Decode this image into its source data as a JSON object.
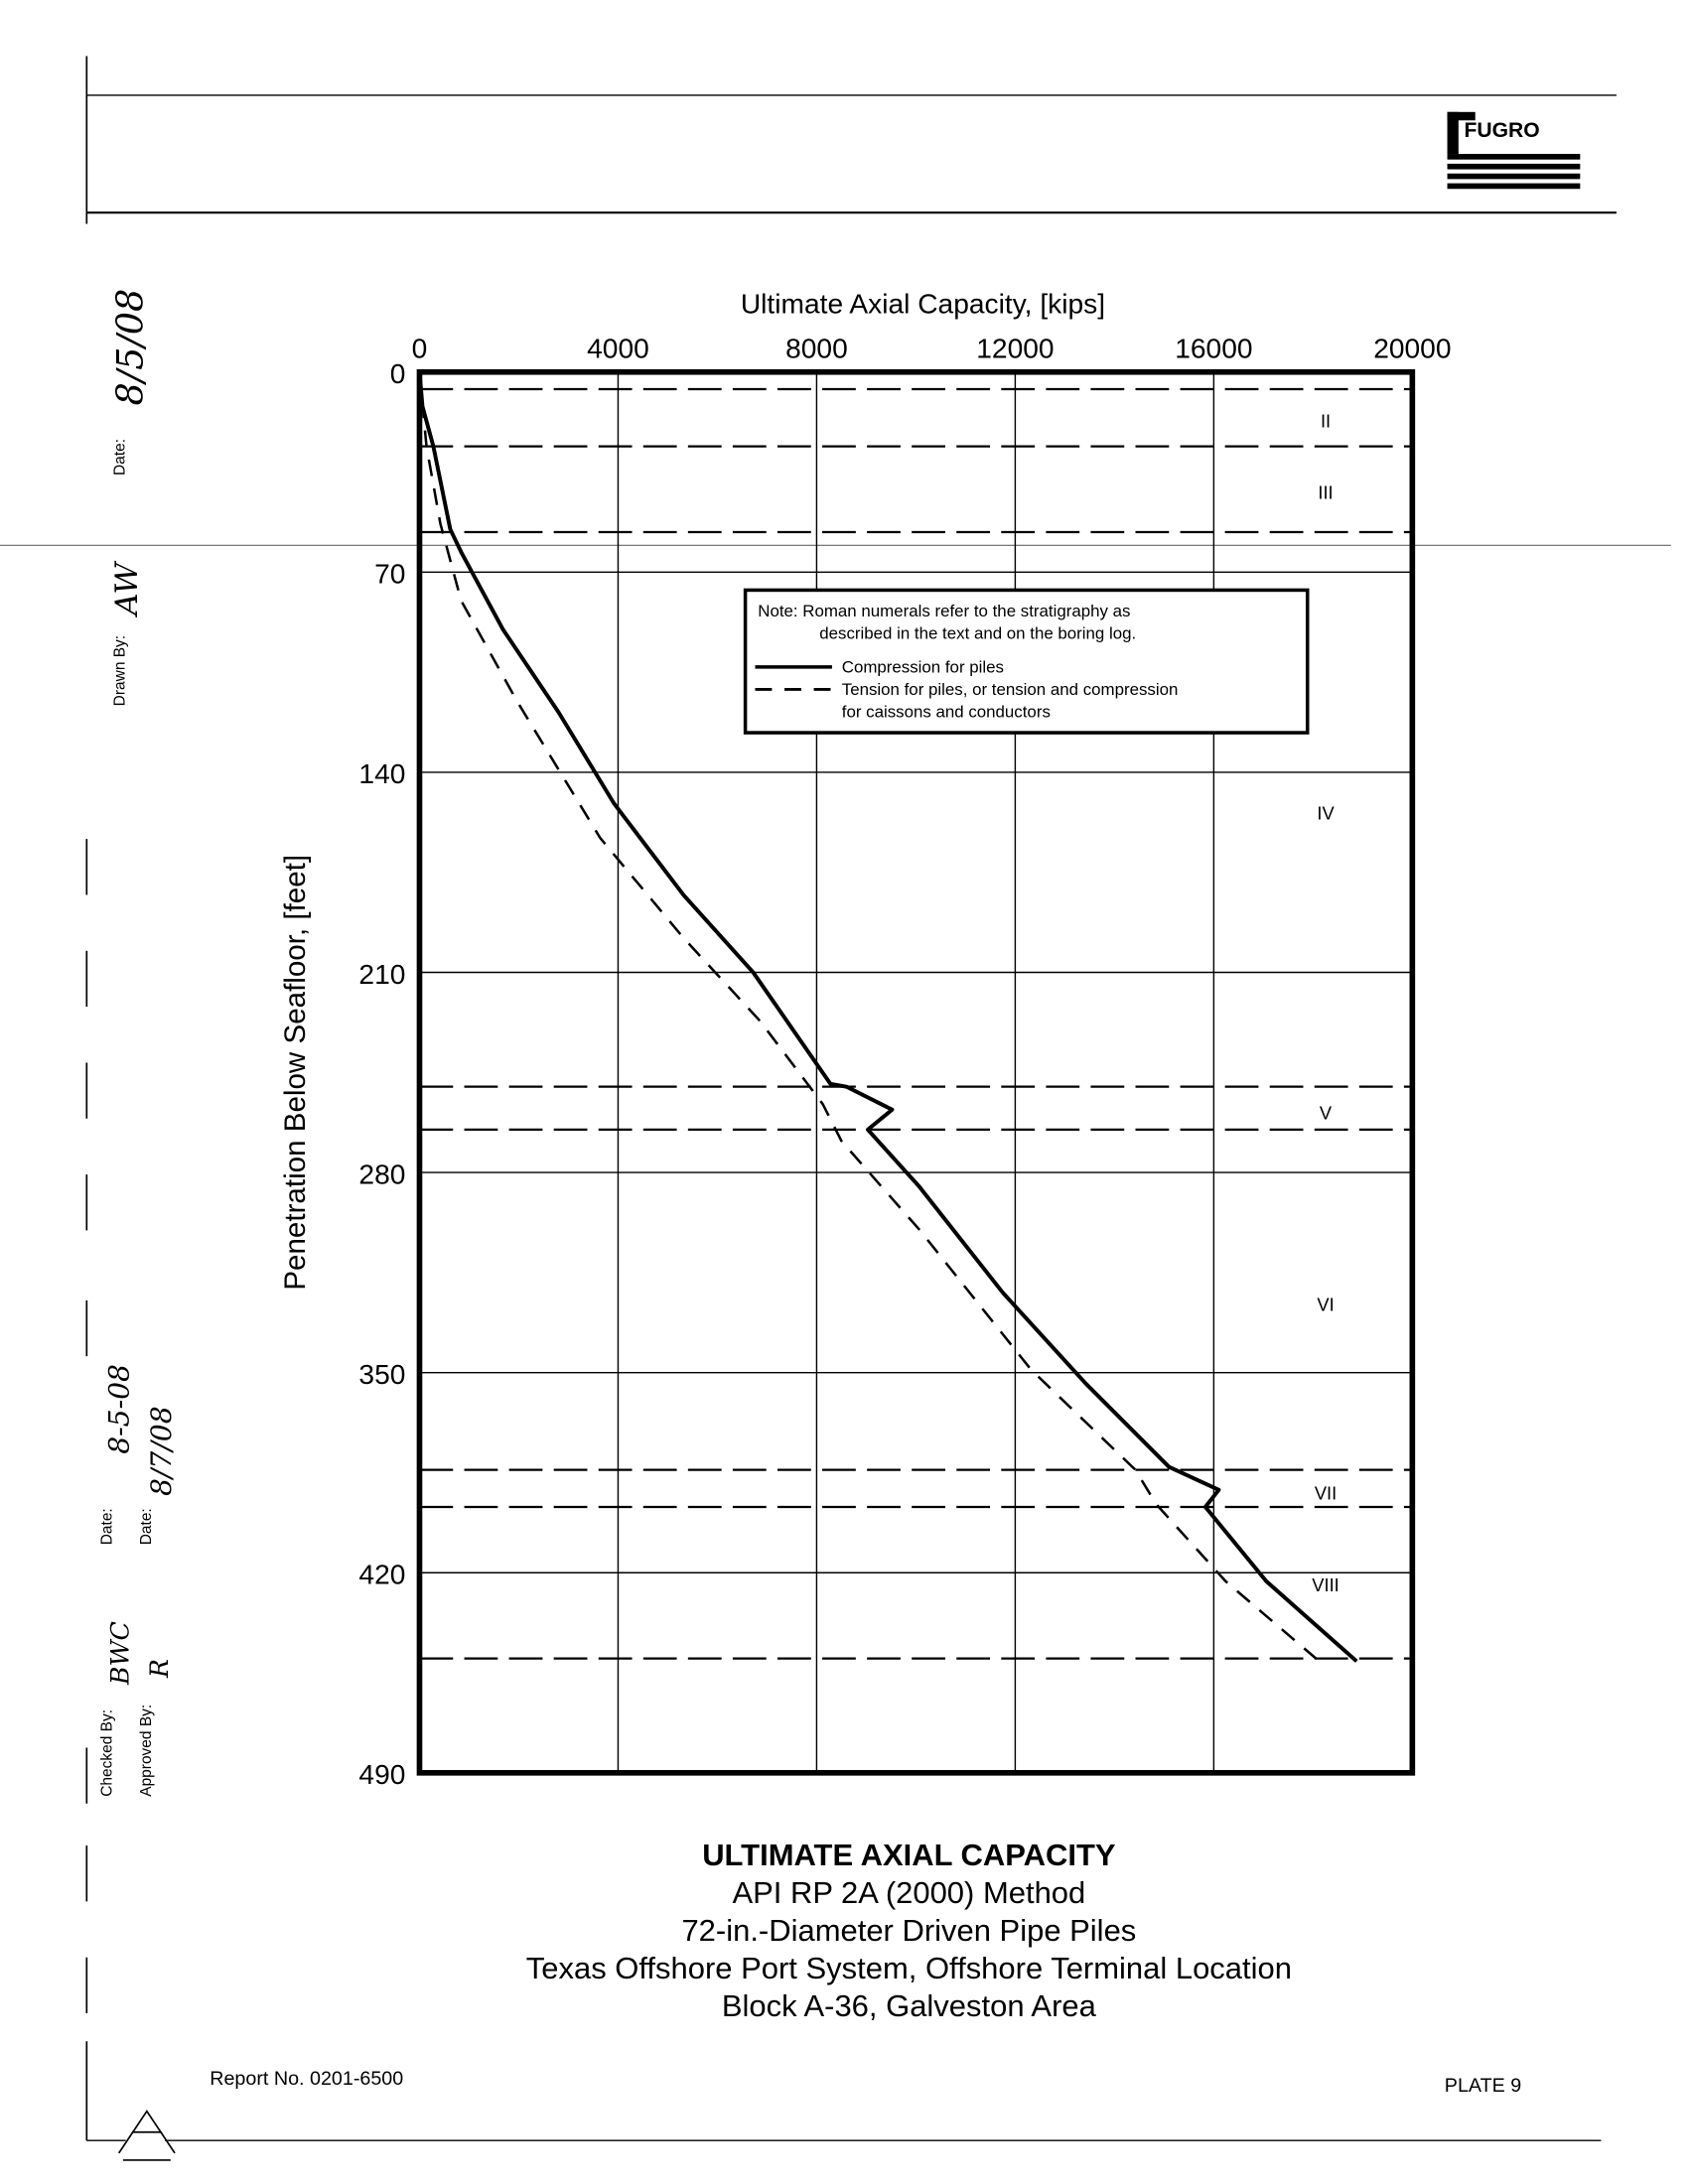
{
  "logo": {
    "text": "FUGRO"
  },
  "margin": {
    "drawn_by_label": "Drawn By:",
    "drawn_by_sig": "AW",
    "date_label_1": "Date:",
    "date_1": "8/5/08",
    "checked_by_label": "Checked By:",
    "checked_by_sig": "BWC",
    "date_label_2": "Date:",
    "date_2": "8-5-08",
    "approved_by_label": "Approved By:",
    "approved_by_sig": "R",
    "date_label_3": "Date:",
    "date_3": "8/7/08"
  },
  "chart_data": {
    "type": "line",
    "xlabel": "Ultimate Axial Capacity, [kips]",
    "ylabel": "Penetration Below Seafloor, [feet]",
    "xlim": [
      0,
      20000
    ],
    "ylim": [
      0,
      490
    ],
    "y_inverted": true,
    "x_axis_position": "top",
    "xticks": [
      "0",
      "4000",
      "8000",
      "12000",
      "16000",
      "20000"
    ],
    "yticks": [
      "0",
      "70",
      "140",
      "210",
      "280",
      "350",
      "420",
      "490"
    ],
    "grid": true,
    "series": [
      {
        "name": "Compression for piles",
        "style": "solid",
        "points": [
          [
            0,
            0
          ],
          [
            60,
            12
          ],
          [
            280,
            26
          ],
          [
            620,
            55
          ],
          [
            840,
            63
          ],
          [
            1680,
            90
          ],
          [
            2800,
            119
          ],
          [
            3920,
            151
          ],
          [
            5320,
            183
          ],
          [
            6720,
            210
          ],
          [
            8280,
            249
          ],
          [
            8600,
            250
          ],
          [
            9520,
            258
          ],
          [
            9030,
            265
          ],
          [
            10070,
            285
          ],
          [
            11750,
            322
          ],
          [
            13430,
            354
          ],
          [
            15100,
            383
          ],
          [
            16100,
            391
          ],
          [
            15830,
            397
          ],
          [
            17060,
            423
          ],
          [
            18880,
            451
          ]
        ]
      },
      {
        "name": "Tension for piles, or tension and compression for caissons and conductors",
        "style": "dashed",
        "points": [
          [
            0,
            0
          ],
          [
            140,
            26
          ],
          [
            420,
            53
          ],
          [
            840,
            80
          ],
          [
            1960,
            115
          ],
          [
            3640,
            163
          ],
          [
            5320,
            198
          ],
          [
            6860,
            227
          ],
          [
            8120,
            256
          ],
          [
            8500,
            269
          ],
          [
            10070,
            300
          ],
          [
            12320,
            349
          ],
          [
            14420,
            384
          ],
          [
            14840,
            396
          ],
          [
            16240,
            423
          ],
          [
            18060,
            450
          ]
        ]
      }
    ],
    "strata_boundaries": [
      6,
      26,
      56,
      250,
      265,
      384,
      397,
      450
    ],
    "strata_labels": [
      {
        "label": "II",
        "depth": 17
      },
      {
        "label": "III",
        "depth": 42
      },
      {
        "label": "IV",
        "depth": 154
      },
      {
        "label": "V",
        "depth": 259
      },
      {
        "label": "VI",
        "depth": 326
      },
      {
        "label": "VII",
        "depth": 392
      },
      {
        "label": "VIII",
        "depth": 424
      }
    ],
    "legend": {
      "placement": "upper-center",
      "note_line1": "Note:  Roman numerals refer to the stratigraphy as",
      "note_line2": "described in the text and on the boring log.",
      "entry1": "Compression for piles",
      "entry2_line1": "Tension for piles, or tension and compression",
      "entry2_line2": "for caissons and conductors"
    }
  },
  "caption": {
    "title": "ULTIMATE AXIAL CAPACITY",
    "line2": "API RP 2A (2000) Method",
    "line3": "72-in.-Diameter Driven Pipe Piles",
    "line4": "Texas Offshore Port System, Offshore Terminal Location",
    "line5": "Block A-36, Galveston Area"
  },
  "footer": {
    "report": "Report No. 0201-6500",
    "plate": "PLATE 9"
  },
  "colors": {
    "ink": "#000000",
    "paper": "#ffffff"
  }
}
